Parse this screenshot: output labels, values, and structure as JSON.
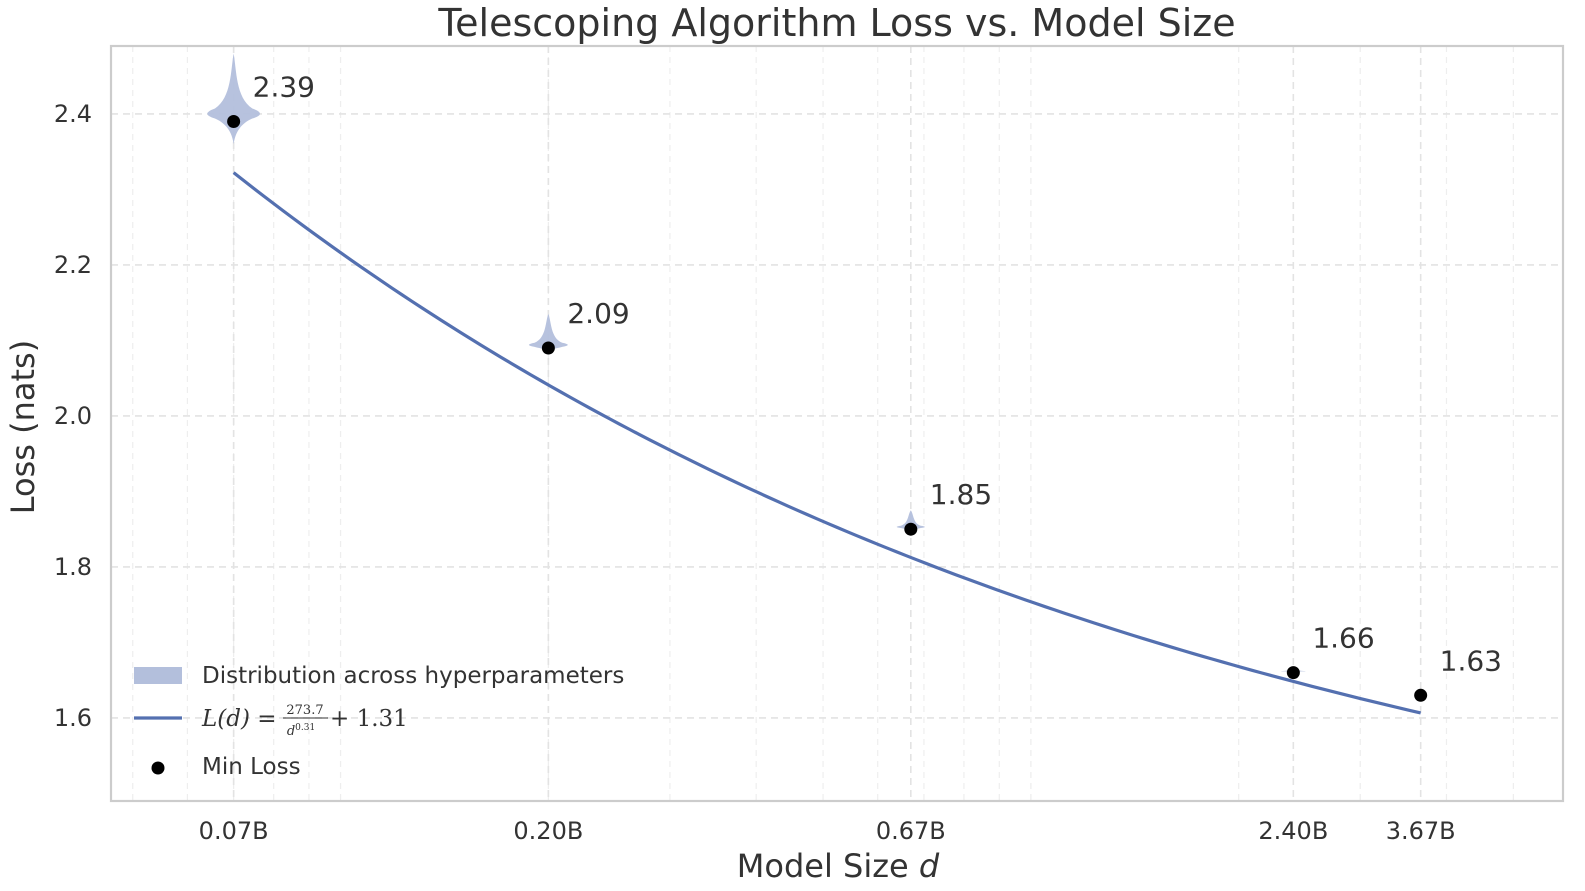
{
  "chart_data": {
    "type": "line",
    "title": "Telescoping Algorithm Loss vs. Model Size",
    "xlabel": "Model Size",
    "xlabel_var": "d",
    "ylabel": "Loss (nats)",
    "x_scale": "log",
    "x_unit": "B parameters",
    "xlim": [
      0.0465,
      5.9
    ],
    "ylim": [
      1.49,
      2.49
    ],
    "grid": true,
    "x_ticks": [
      {
        "value": 0.07,
        "label": "0.07B"
      },
      {
        "value": 0.2,
        "label": "0.20B"
      },
      {
        "value": 0.67,
        "label": "0.67B"
      },
      {
        "value": 2.4,
        "label": "2.40B"
      },
      {
        "value": 3.67,
        "label": "3.67B"
      }
    ],
    "y_ticks": [
      {
        "value": 1.6,
        "label": "1.6"
      },
      {
        "value": 1.8,
        "label": "1.8"
      },
      {
        "value": 2.0,
        "label": "2.0"
      },
      {
        "value": 2.2,
        "label": "2.2"
      },
      {
        "value": 2.4,
        "label": "2.4"
      }
    ],
    "fit": {
      "a": 273.7,
      "alpha": 0.31,
      "c": 1.31
    },
    "series": [
      {
        "name": "Min Loss",
        "type": "scatter",
        "x": [
          0.07,
          0.2,
          0.67,
          2.4,
          3.67
        ],
        "y": [
          2.39,
          2.09,
          1.85,
          1.66,
          1.63
        ],
        "labels": [
          "2.39",
          "2.09",
          "1.85",
          "1.66",
          "1.63"
        ],
        "color": "#000000"
      },
      {
        "name": "Distribution across hyperparameters",
        "type": "violin",
        "color": "#b3bfdc",
        "x": [
          0.07,
          0.2,
          0.67,
          2.4
        ],
        "y_min": [
          2.36,
          2.085,
          1.848,
          1.66
        ],
        "y_max": [
          2.48,
          2.135,
          1.875,
          1.667
        ],
        "y_mode": [
          2.4,
          2.094,
          1.853,
          1.662
        ]
      }
    ],
    "legend": {
      "position": "lower-left",
      "entries": [
        {
          "label": "Distribution across hyperparameters",
          "kind": "patch",
          "color": "#b3bfdc"
        },
        {
          "label_prefix": "L(d) = ",
          "num": "273.7",
          "den": "d",
          "den_exp": "0.31",
          "label_suffix": " + 1.31",
          "kind": "line",
          "color": "#5470b0"
        },
        {
          "label": "Min Loss",
          "kind": "marker",
          "color": "#000000"
        }
      ]
    },
    "colors": {
      "fit_line": "#5470b0",
      "violin": "#b3bfdc",
      "points": "#000000",
      "frame": "#cccccc"
    }
  }
}
